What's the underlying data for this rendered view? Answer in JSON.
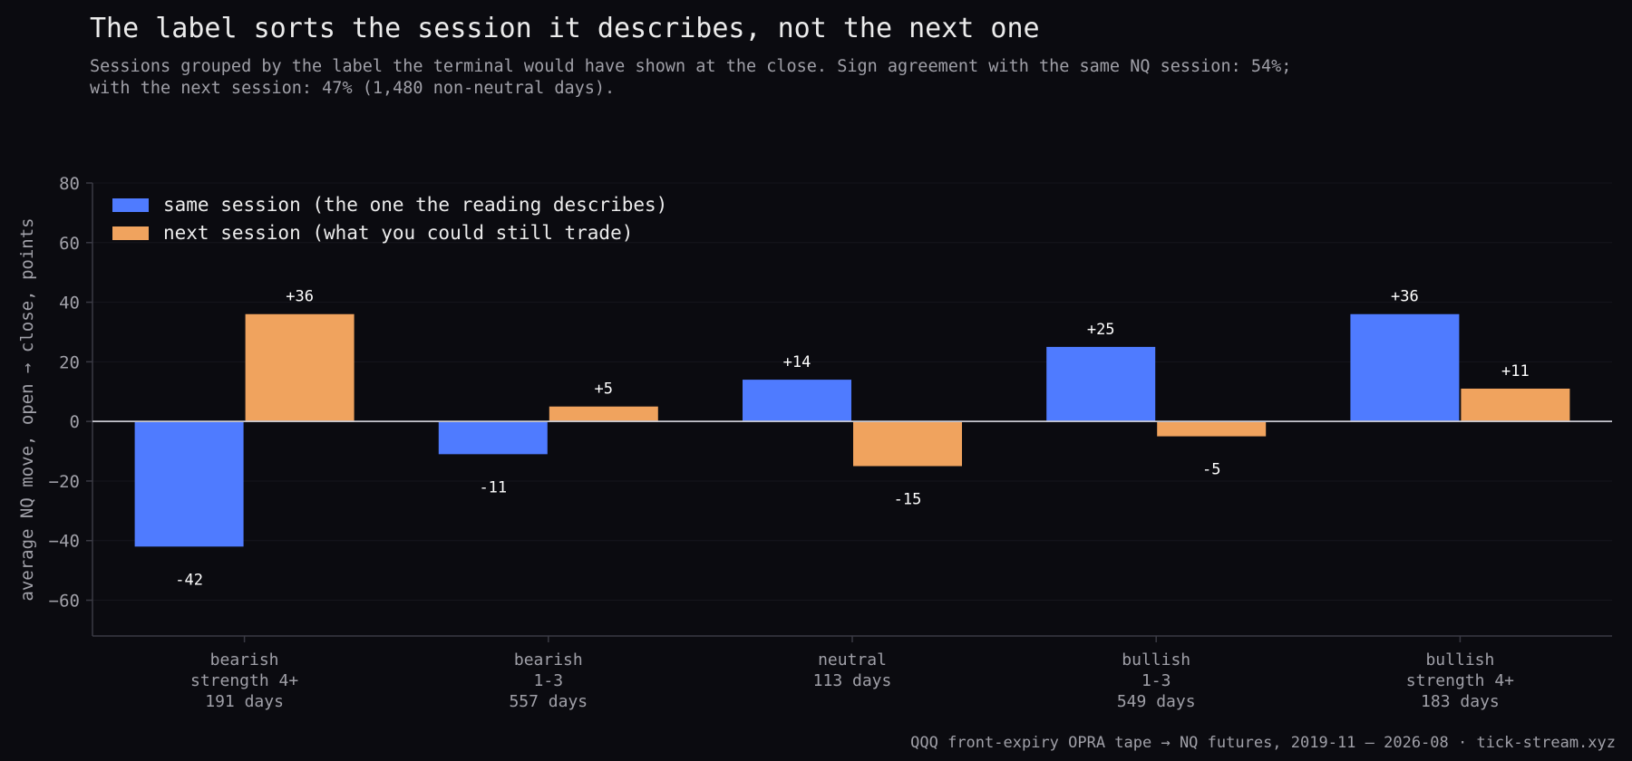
{
  "title": "The label sorts the session it describes, not the next one",
  "subtitle": {
    "line1": "Sessions grouped by the label the terminal would have shown at the close. Sign agreement with the same NQ session: 54%;",
    "line2": "with the next session: 47% (1,480 non-neutral days)."
  },
  "footer": "QQQ front-expiry OPRA tape → NQ futures, 2019-11 – 2026-08 · tick-stream.xyz",
  "colors": {
    "background": "#0b0b10",
    "same_session": "#4f7bff",
    "next_session": "#f0a35e",
    "zero_line": "#c8c8d0",
    "grid": "#16161d",
    "axis": "#3a3a44"
  },
  "chart_data": {
    "type": "bar",
    "categories": [
      [
        "bearish",
        "strength 4+",
        "191 days"
      ],
      [
        "bearish",
        "1-3",
        "557 days"
      ],
      [
        "neutral",
        "113 days"
      ],
      [
        "bullish",
        "1-3",
        "549 days"
      ],
      [
        "bullish",
        "strength 4+",
        "183 days"
      ]
    ],
    "series": [
      {
        "name": "same session (the one the reading describes)",
        "values": [
          -42,
          -11,
          14,
          25,
          36
        ],
        "labels": [
          "-42",
          "-11",
          "+14",
          "+25",
          "+36"
        ]
      },
      {
        "name": "next session (what you could still trade)",
        "values": [
          36,
          5,
          -15,
          -5,
          11
        ],
        "labels": [
          "+36",
          "+5",
          "-15",
          "-5",
          "+11"
        ]
      }
    ],
    "xlabel": "",
    "ylabel": "average NQ move, open → close, points",
    "ylim": [
      -72,
      80
    ],
    "yticks": [
      80,
      60,
      40,
      20,
      0,
      -20,
      -40,
      -60
    ],
    "ytick_labels": [
      "80",
      "60",
      "40",
      "20",
      "0",
      "−20",
      "−40",
      "−60"
    ],
    "grid": true,
    "legend": "top-left"
  }
}
